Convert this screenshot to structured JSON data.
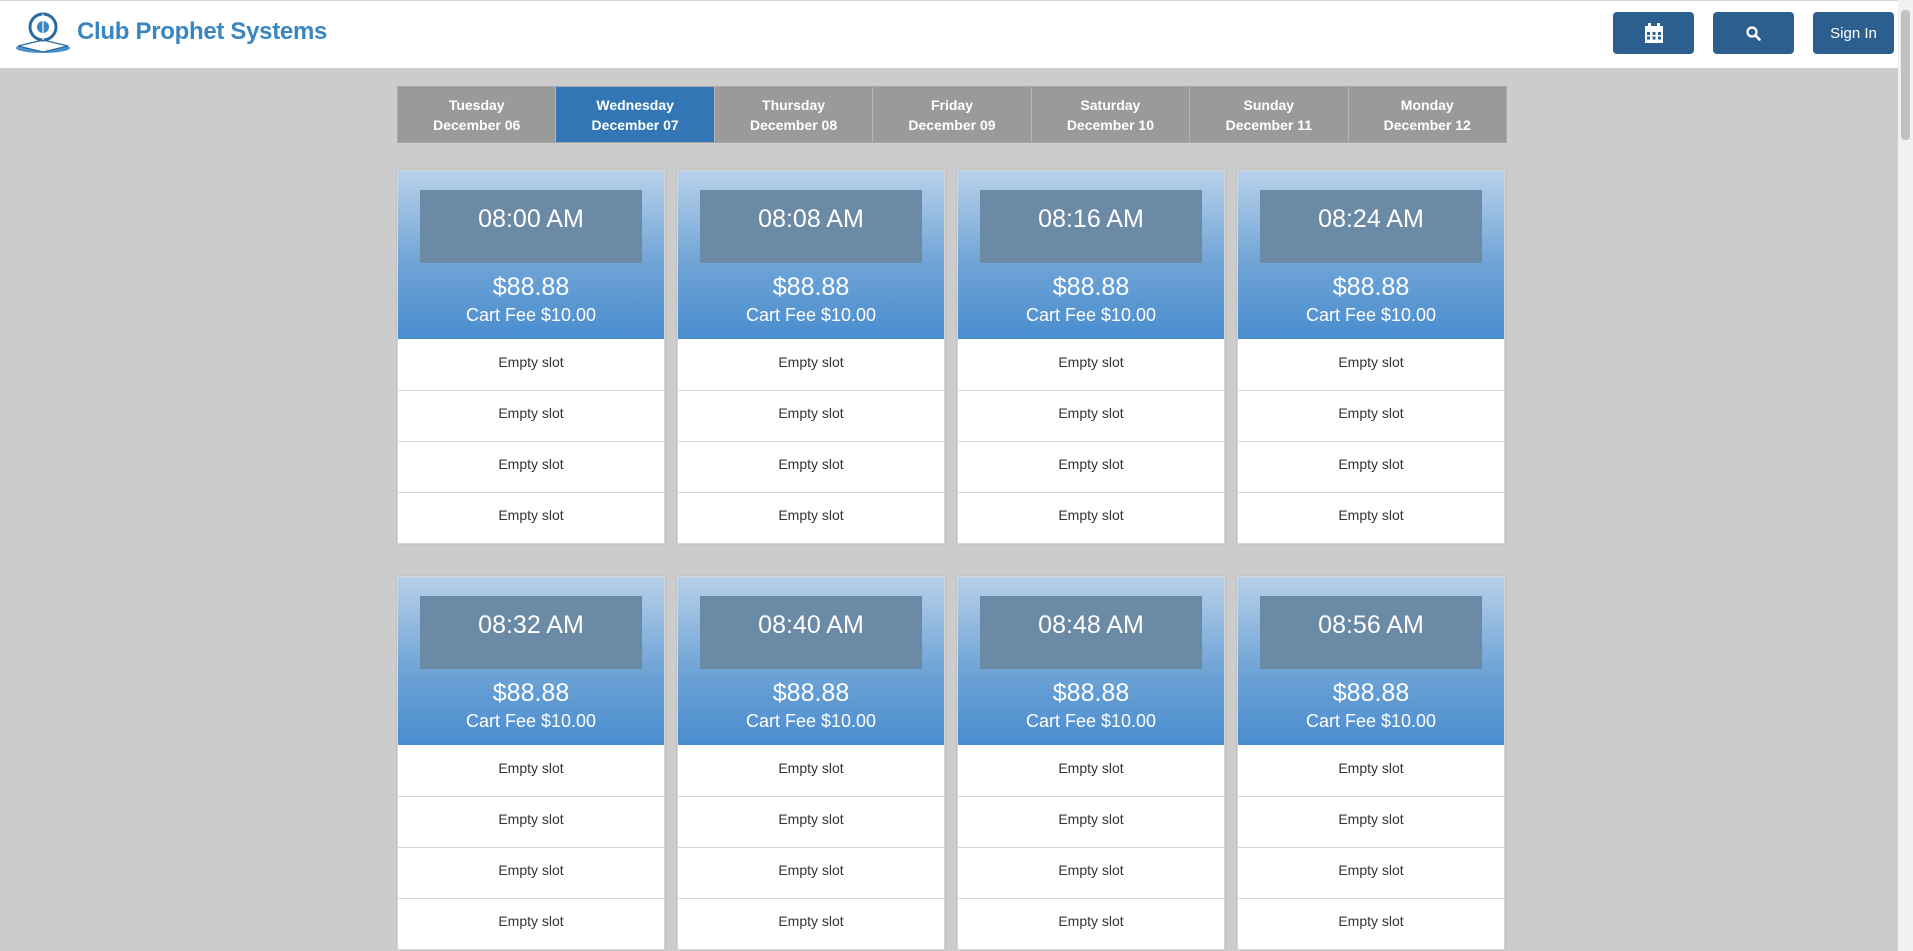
{
  "header": {
    "brand_name": "Club Prophet Systems",
    "calendar_icon": "calendar-icon",
    "search_icon": "search-icon",
    "sign_in_label": "Sign In",
    "colors": {
      "brand": "#3a86c0",
      "button": "#2c5f8e"
    }
  },
  "tabs": [
    {
      "day": "Tuesday",
      "date": "December 06",
      "active": false
    },
    {
      "day": "Wednesday",
      "date": "December 07",
      "active": true
    },
    {
      "day": "Thursday",
      "date": "December 08",
      "active": false
    },
    {
      "day": "Friday",
      "date": "December 09",
      "active": false
    },
    {
      "day": "Saturday",
      "date": "December 10",
      "active": false
    },
    {
      "day": "Sunday",
      "date": "December 11",
      "active": false
    },
    {
      "day": "Monday",
      "date": "December 12",
      "active": false
    }
  ],
  "tee_times": [
    {
      "time": "08:00 AM",
      "price": "$88.88",
      "cart_fee": "Cart Fee $10.00",
      "slots": [
        "Empty slot",
        "Empty slot",
        "Empty slot",
        "Empty slot"
      ]
    },
    {
      "time": "08:08 AM",
      "price": "$88.88",
      "cart_fee": "Cart Fee $10.00",
      "slots": [
        "Empty slot",
        "Empty slot",
        "Empty slot",
        "Empty slot"
      ]
    },
    {
      "time": "08:16 AM",
      "price": "$88.88",
      "cart_fee": "Cart Fee $10.00",
      "slots": [
        "Empty slot",
        "Empty slot",
        "Empty slot",
        "Empty slot"
      ]
    },
    {
      "time": "08:24 AM",
      "price": "$88.88",
      "cart_fee": "Cart Fee $10.00",
      "slots": [
        "Empty slot",
        "Empty slot",
        "Empty slot",
        "Empty slot"
      ]
    },
    {
      "time": "08:32 AM",
      "price": "$88.88",
      "cart_fee": "Cart Fee $10.00",
      "slots": [
        "Empty slot",
        "Empty slot",
        "Empty slot",
        "Empty slot"
      ]
    },
    {
      "time": "08:40 AM",
      "price": "$88.88",
      "cart_fee": "Cart Fee $10.00",
      "slots": [
        "Empty slot",
        "Empty slot",
        "Empty slot",
        "Empty slot"
      ]
    },
    {
      "time": "08:48 AM",
      "price": "$88.88",
      "cart_fee": "Cart Fee $10.00",
      "slots": [
        "Empty slot",
        "Empty slot",
        "Empty slot",
        "Empty slot"
      ]
    },
    {
      "time": "08:56 AM",
      "price": "$88.88",
      "cart_fee": "Cart Fee $10.00",
      "slots": [
        "Empty slot",
        "Empty slot",
        "Empty slot",
        "Empty slot"
      ]
    }
  ],
  "colors": {
    "active_tab": "#3276b5",
    "inactive_tab": "#9a9a9a",
    "time_box": "#6b8aa6"
  }
}
